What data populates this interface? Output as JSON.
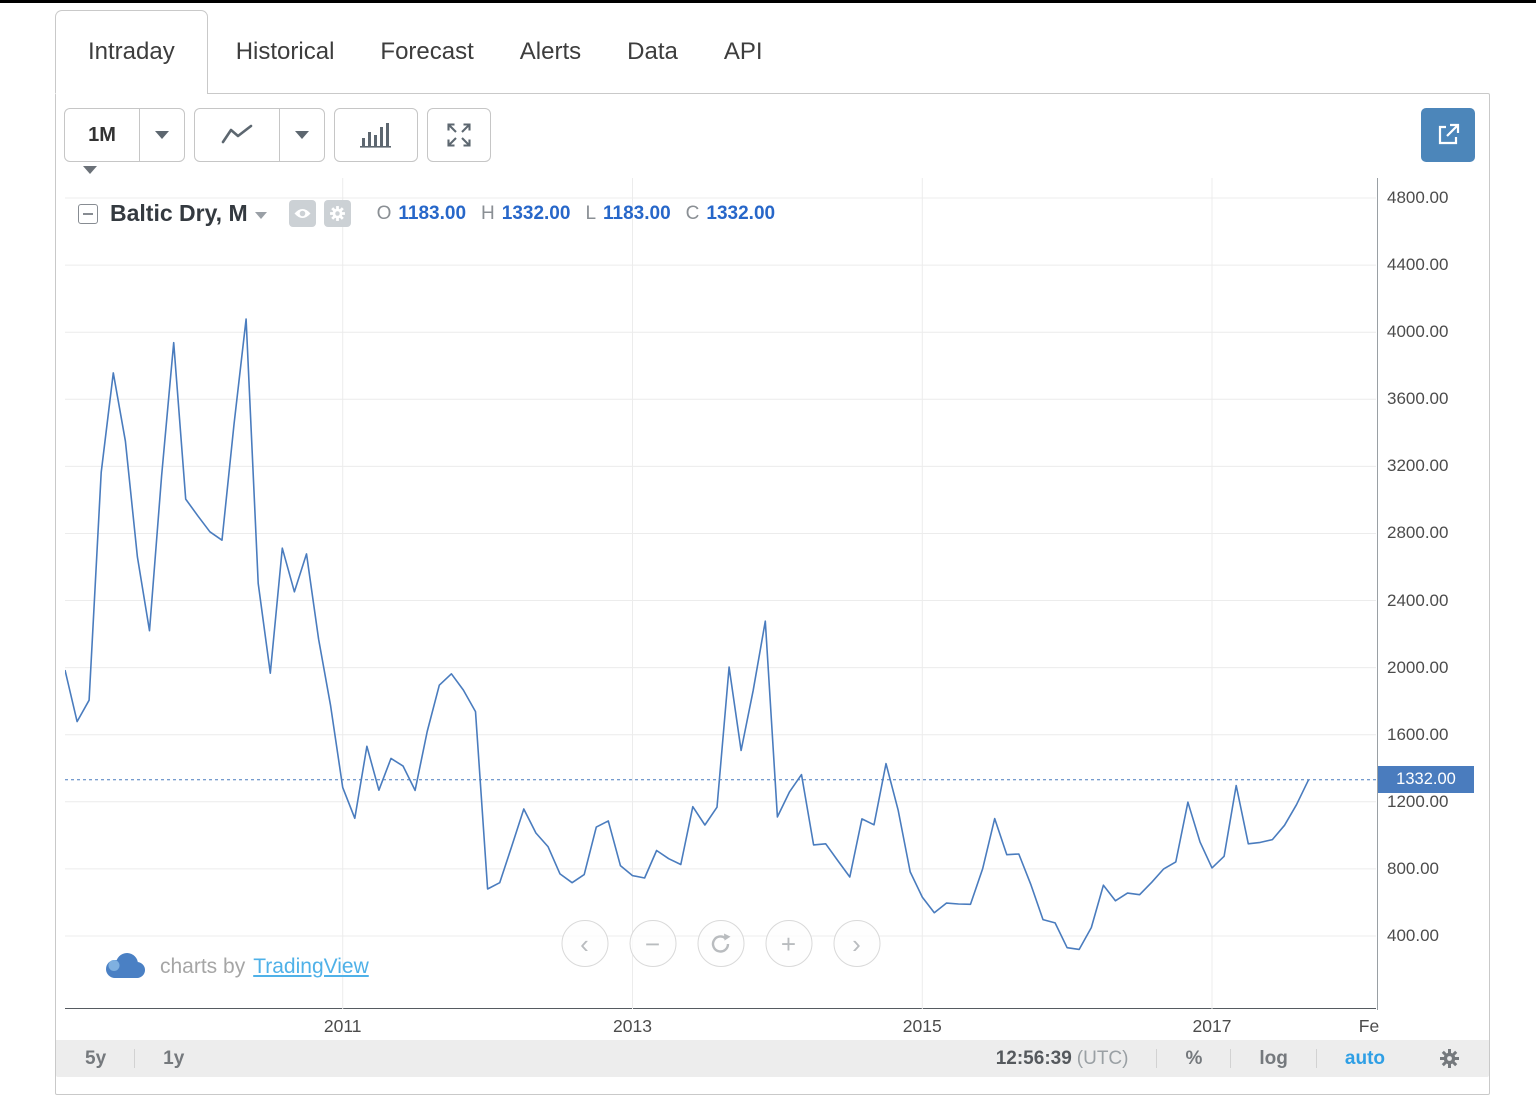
{
  "tabs": [
    {
      "label": "Intraday",
      "active": true
    },
    {
      "label": "Historical",
      "active": false
    },
    {
      "label": "Forecast",
      "active": false
    },
    {
      "label": "Alerts",
      "active": false
    },
    {
      "label": "Data",
      "active": false
    },
    {
      "label": "API",
      "active": false
    }
  ],
  "toolbar": {
    "interval": "1M"
  },
  "legend": {
    "symbol": "Baltic Dry, M",
    "ohlc": {
      "o_label": "O",
      "o": "1183.00",
      "h_label": "H",
      "h": "1332.00",
      "l_label": "L",
      "l": "1183.00",
      "c_label": "C",
      "c": "1332.00"
    }
  },
  "axis": {
    "price_label": "1332.00"
  },
  "watermark": {
    "prefix": "charts by",
    "brand": "TradingView"
  },
  "nav": {
    "back": "‹",
    "zoom_out": "−",
    "zoom_in": "+",
    "forward": "›"
  },
  "footer": {
    "range_5y": "5y",
    "range_1y": "1y",
    "time": "12:56:39",
    "timezone": "(UTC)",
    "percent": "%",
    "log": "log",
    "auto": "auto"
  },
  "colors": {
    "line": "#4a7cbe",
    "price_tag": "#4a7cbe",
    "ohlc_value": "#2767c9",
    "brand_link": "#4fb1e8",
    "auto_active": "#2f9fe5",
    "popout_button": "#4c86ba"
  },
  "chart_data": {
    "type": "line",
    "title": "Baltic Dry, M",
    "interval": "monthly",
    "x_start": "2009-02",
    "x_end": "2017-09",
    "xlabel": "",
    "ylabel": "",
    "ylim": [
      0,
      4920
    ],
    "grid": true,
    "y_ticks": [
      400,
      800,
      1200,
      1600,
      2000,
      2400,
      2800,
      3200,
      3600,
      4000,
      4400,
      4800
    ],
    "x_ticks": [
      {
        "label": "2011",
        "month_index": 23,
        "grid": true
      },
      {
        "label": "2013",
        "month_index": 47,
        "grid": true
      },
      {
        "label": "2015",
        "month_index": 71,
        "grid": true
      },
      {
        "label": "2017",
        "month_index": 95,
        "grid": true
      },
      {
        "label": "Fe",
        "month_index": 108,
        "grid": false
      }
    ],
    "current": {
      "open": 1183,
      "high": 1332,
      "low": 1183,
      "close": 1332
    },
    "values": [
      1986,
      1678,
      1806,
      3164,
      3757,
      3350,
      2660,
      2220,
      3143,
      3937,
      3005,
      2905,
      2810,
      2760,
      3450,
      4078,
      2502,
      1967,
      2712,
      2452,
      2678,
      2170,
      1773,
      1286,
      1102,
      1531,
      1269,
      1459,
      1413,
      1268,
      1619,
      1895,
      1963,
      1866,
      1738,
      680,
      718,
      934,
      1157,
      1014,
      933,
      770,
      718,
      766,
      1049,
      1086,
      820,
      760,
      746,
      910,
      861,
      826,
      1171,
      1062,
      1168,
      2003,
      1506,
      1865,
      2277,
      1110,
      1258,
      1362,
      943,
      950,
      850,
      752,
      1098,
      1063,
      1428,
      1152,
      782,
      632,
      539,
      596,
      591,
      589,
      800,
      1100,
      885,
      889,
      706,
      498,
      478,
      330,
      320,
      450,
      703,
      610,
      656,
      646,
      720,
      800,
      842,
      1198,
      961,
      806,
      875,
      1297,
      950,
      958,
      975,
      1060,
      1183,
      1332
    ]
  }
}
